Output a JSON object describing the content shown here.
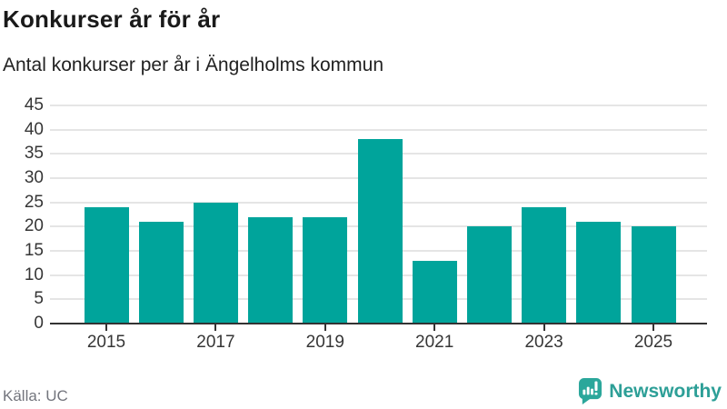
{
  "header": {
    "title": "Konkurser år för år",
    "subtitle": "Antal konkurser per år i Ängelholms kommun"
  },
  "chart_data": {
    "type": "bar",
    "categories": [
      "2015",
      "2016",
      "2017",
      "2018",
      "2019",
      "2020",
      "2021",
      "2022",
      "2023",
      "2024",
      "2025"
    ],
    "values": [
      24,
      21,
      25,
      22,
      22,
      38,
      13,
      20,
      24,
      21,
      20
    ],
    "title": "Konkurser år för år",
    "subtitle": "Antal konkurser per år i Ängelholms kommun",
    "xlabel": "",
    "ylabel": "",
    "ylim": [
      0,
      45
    ],
    "yticks": [
      0,
      5,
      10,
      15,
      20,
      25,
      30,
      35,
      40,
      45
    ],
    "xtick_labels": [
      "2015",
      "2017",
      "2019",
      "2021",
      "2023",
      "2025"
    ],
    "grid": true,
    "legend": "none",
    "bar_color": "#00a49b"
  },
  "footer": {
    "source_label": "Källa: UC",
    "brand_name": "Newsworthy"
  },
  "colors": {
    "bar": "#00a49b",
    "gridline": "#e5e5e5",
    "axis": "#333333",
    "title_text": "#1a1a1a",
    "subtitle_text": "#222222",
    "tick_text": "#363636",
    "source_text": "#73757d",
    "brand_icon": "#2ba79b",
    "brand_text": "#2d9f97"
  },
  "icons": {
    "brand_logo": "newsworthy-speech-bubble-bar-chart-icon"
  }
}
